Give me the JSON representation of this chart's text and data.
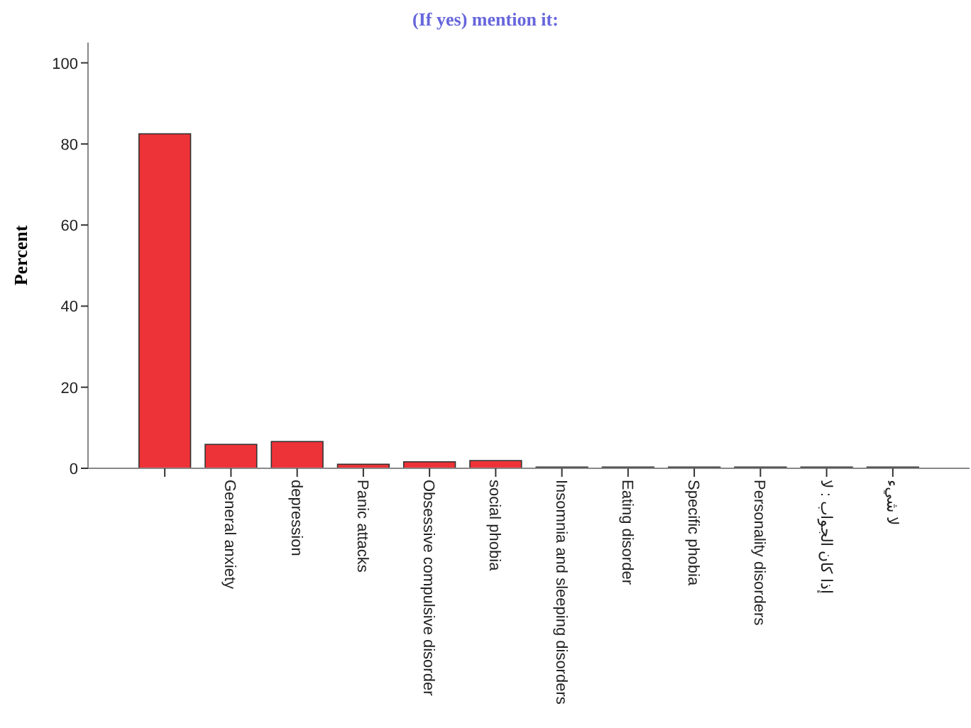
{
  "chart_data": {
    "type": "bar",
    "title": "(If yes) mention it:",
    "ylabel": "Percent",
    "categories": [
      null,
      "General anxiety",
      "depression",
      "Panic attacks",
      "Obsessive compulsive disorder",
      "social phobia",
      "Insomnia and sleeping disorders",
      "Eating disorder",
      "Specific phobia",
      "Personality disorders",
      "إذا كان الجواب : لا",
      "لا شيء"
    ],
    "values": [
      82.5,
      5.9,
      6.6,
      1.0,
      1.6,
      1.9,
      0.3,
      0.3,
      0.3,
      0.3,
      0.3,
      0.3
    ],
    "color": "#ee3338",
    "ylim": [
      0,
      105
    ],
    "yticks": [
      0,
      20,
      40,
      60,
      80,
      100
    ]
  }
}
